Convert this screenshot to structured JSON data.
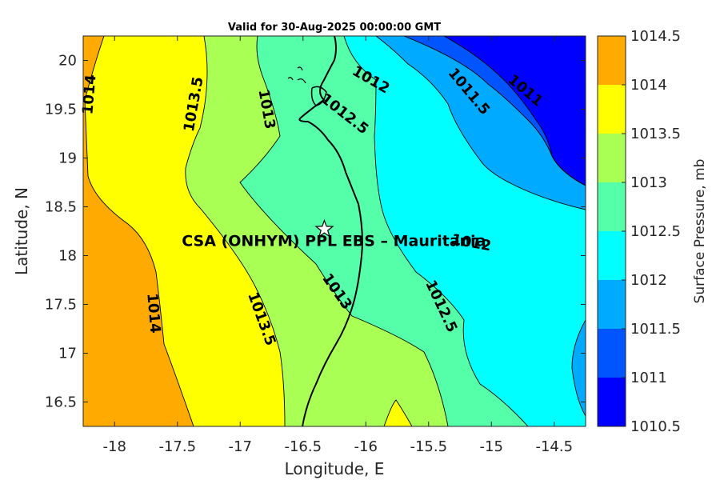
{
  "title": "Valid for 30-Aug-2025 00:00:00 GMT",
  "map": {
    "xlabel": "Longitude, E",
    "ylabel": "Latitude, N",
    "xlim": [
      -18.25,
      -14.25
    ],
    "ylim": [
      16.25,
      20.25
    ],
    "xticks": [
      -18,
      -17.5,
      -17,
      -16.5,
      -16,
      -15.5,
      -15,
      -14.5
    ],
    "xtick_labels": [
      "-18",
      "-17.5",
      "-17",
      "-16.5",
      "-16",
      "-15.5",
      "-15",
      "-14.5"
    ],
    "yticks": [
      16.5,
      17,
      17.5,
      18,
      18.5,
      19,
      19.5,
      20
    ],
    "ytick_labels": [
      "16.5",
      "17",
      "17.5",
      "18",
      "18.5",
      "19",
      "19.5",
      "20"
    ],
    "site": {
      "name": "CSA (ONHYM) PPL EBS  – Mauritania",
      "lon": -16.33,
      "lat": 18.27,
      "marker": "star-icon"
    },
    "contour_labels": [
      {
        "text": "1014",
        "lon": -18.2,
        "lat": 19.65,
        "angle": -85
      },
      {
        "text": "1013.5",
        "lon": -17.37,
        "lat": 19.55,
        "angle": -80
      },
      {
        "text": "1013",
        "lon": -16.79,
        "lat": 19.5,
        "angle": 80
      },
      {
        "text": "1012.5",
        "lon": -16.17,
        "lat": 19.45,
        "angle": 38
      },
      {
        "text": "1012",
        "lon": -15.96,
        "lat": 19.8,
        "angle": 30
      },
      {
        "text": "1011.5",
        "lon": -15.18,
        "lat": 19.68,
        "angle": 50
      },
      {
        "text": "1011",
        "lon": -14.73,
        "lat": 19.69,
        "angle": 40
      },
      {
        "text": "1014",
        "lon": -17.69,
        "lat": 17.41,
        "angle": 85
      },
      {
        "text": "1013.5",
        "lon": -16.83,
        "lat": 17.35,
        "angle": 70
      },
      {
        "text": "1013",
        "lon": -16.23,
        "lat": 17.63,
        "angle": 55
      },
      {
        "text": "1012.5",
        "lon": -15.4,
        "lat": 17.48,
        "angle": 65
      },
      {
        "text": "1012",
        "lon": -15.16,
        "lat": 18.13,
        "angle": 10
      }
    ]
  },
  "colorbar": {
    "label": "Surface Pressure, mb",
    "levels": [
      1010.5,
      1011,
      1011.5,
      1012,
      1012.5,
      1013,
      1013.5,
      1014,
      1014.5
    ],
    "tick_labels": [
      "1010.5",
      "1011",
      "1011.5",
      "1012",
      "1012.5",
      "1013",
      "1013.5",
      "1014",
      "1014.5"
    ],
    "colors": [
      "#0000ff",
      "#0055ff",
      "#00aaff",
      "#00ffff",
      "#55ffaa",
      "#aaff55",
      "#ffff00",
      "#ffaa00",
      "#ff5500"
    ]
  }
}
